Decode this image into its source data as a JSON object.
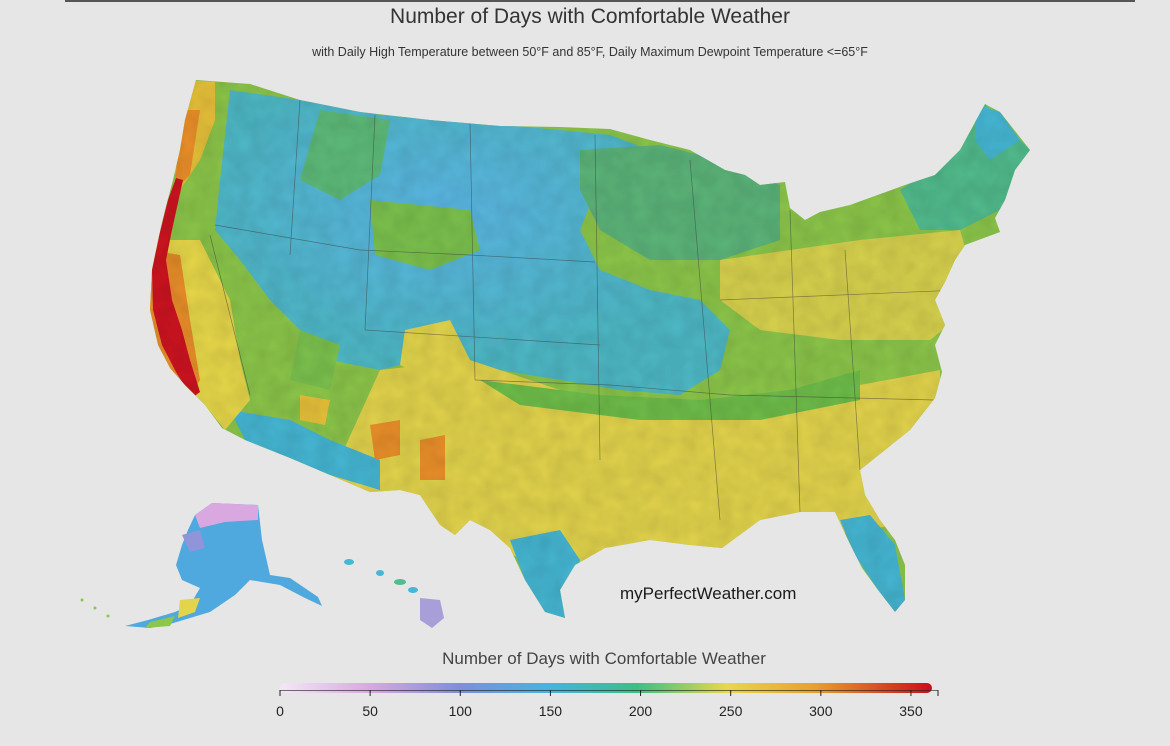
{
  "title": "Number of Days with Comfortable Weather",
  "subtitle": "with Daily High Temperature between 50°F and 85°F, Daily Maximum Dewpoint Temperature <=65°F",
  "watermark": "myPerfectWeather.com",
  "legend": {
    "title": "Number of Days with Comfortable Weather",
    "min": 0,
    "max": 365,
    "ticks": [
      "0",
      "50",
      "100",
      "150",
      "200",
      "250",
      "300",
      "350"
    ],
    "tick_values": [
      0,
      50,
      100,
      150,
      200,
      250,
      300,
      350
    ],
    "gradient_stops": [
      {
        "value": 0,
        "color": "#f3e8f5"
      },
      {
        "value": 50,
        "color": "#d9a8e0"
      },
      {
        "value": 100,
        "color": "#7f8fd8"
      },
      {
        "value": 150,
        "color": "#46b3e0"
      },
      {
        "value": 200,
        "color": "#3cbf86"
      },
      {
        "value": 250,
        "color": "#e8d84a"
      },
      {
        "value": 300,
        "color": "#e8a02c"
      },
      {
        "value": 365,
        "color": "#cc0c1c"
      }
    ]
  },
  "colors": {
    "background": "#e6e6e6",
    "extreme_high": "#cc0c1c",
    "high": "#ea8f2a",
    "mid_high": "#e8d84a",
    "mid": "#8cc64a",
    "low": "#46b3e0",
    "very_low": "#d9a8e0"
  }
}
